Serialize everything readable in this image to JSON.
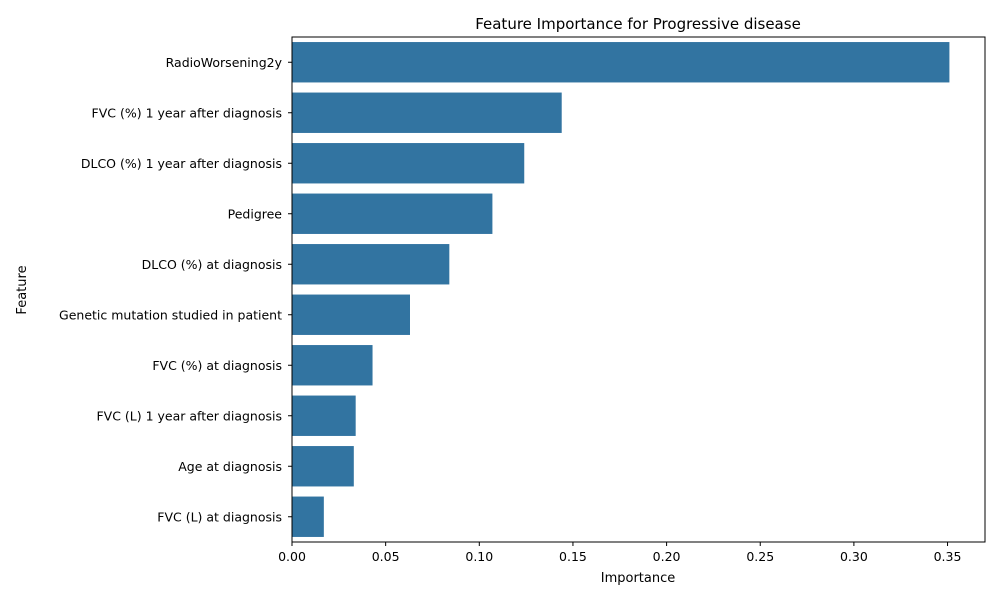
{
  "chart_data": {
    "type": "bar",
    "orientation": "horizontal",
    "title": "Feature Importance for Progressive disease",
    "xlabel": "Importance",
    "ylabel": "Feature",
    "categories": [
      "RadioWorsening2y",
      "FVC (%) 1 year after diagnosis",
      "DLCO (%) 1 year after diagnosis",
      "Pedigree",
      "DLCO (%) at diagnosis",
      "Genetic mutation studied in patient",
      "FVC (%) at diagnosis",
      "FVC (L) 1 year after diagnosis",
      "Age at diagnosis",
      "FVC (L) at diagnosis"
    ],
    "values": [
      0.351,
      0.144,
      0.124,
      0.107,
      0.084,
      0.063,
      0.043,
      0.034,
      0.033,
      0.017
    ],
    "xlim": [
      0.0,
      0.37
    ],
    "xticks": [
      "0.00",
      "0.05",
      "0.10",
      "0.15",
      "0.20",
      "0.25",
      "0.30",
      "0.35"
    ],
    "grid": false,
    "bar_color": "#3274a1"
  }
}
